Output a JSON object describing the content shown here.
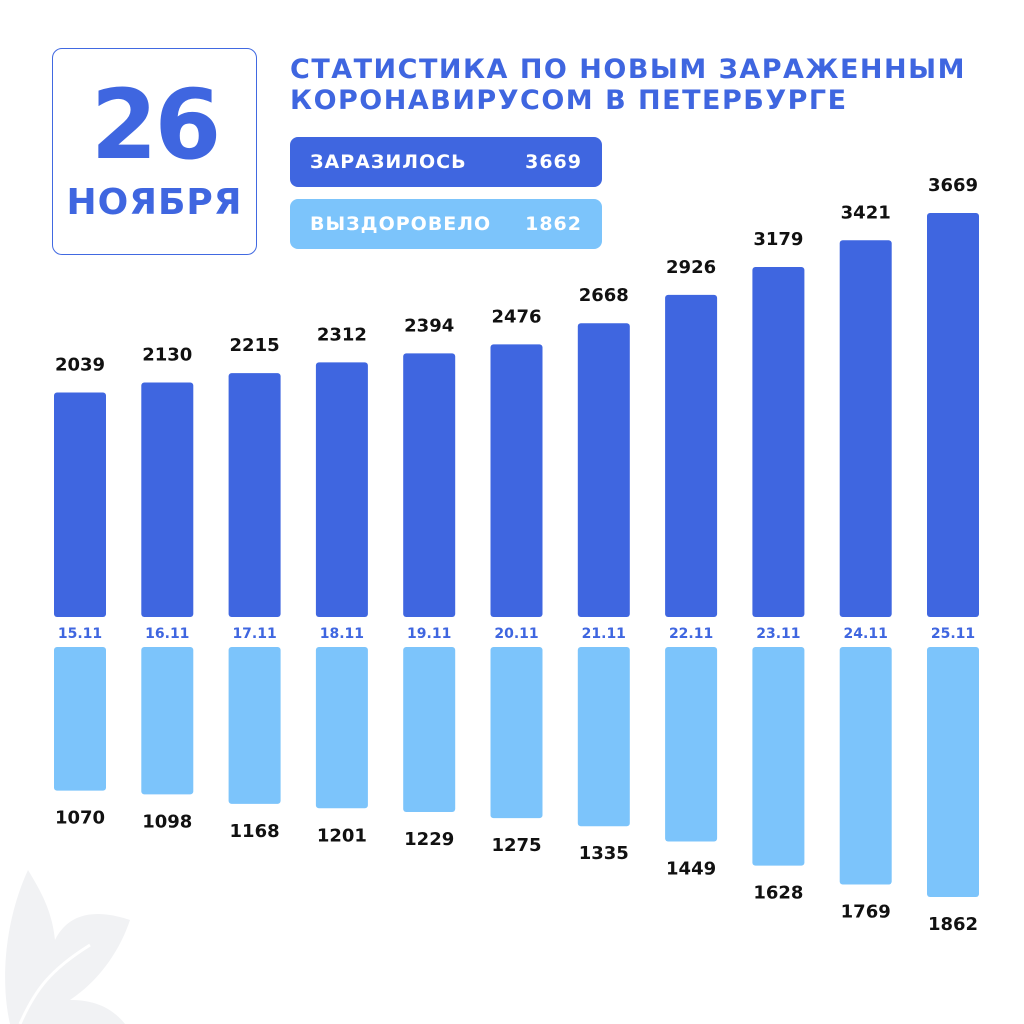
{
  "date": {
    "day": "26",
    "month": "НОЯБРЯ"
  },
  "title": {
    "line1": "СТАТИСТИКА ПО НОВЫМ ЗАРАЖЕННЫМ",
    "line2": "КОРОНАВИРУСОМ В ПЕТЕРБУРГЕ"
  },
  "legend": {
    "infected": {
      "label": "ЗАРАЗИЛОСЬ",
      "value": "3669"
    },
    "recovered": {
      "label": "ВЫЗДОРОВЕЛО",
      "value": "1862"
    }
  },
  "colors": {
    "infected": "#3f66e0",
    "recovered": "#7cc4fb",
    "date_label": "#3f66e0",
    "value_label": "#111111"
  },
  "chart_data": {
    "type": "bar",
    "categories": [
      "15.11",
      "16.11",
      "17.11",
      "18.11",
      "19.11",
      "20.11",
      "21.11",
      "22.11",
      "23.11",
      "24.11",
      "25.11"
    ],
    "series": [
      {
        "name": "ЗАРАЗИЛОСЬ",
        "values": [
          2039,
          2130,
          2215,
          2312,
          2394,
          2476,
          2668,
          2926,
          3179,
          3421,
          3669
        ]
      },
      {
        "name": "ВЫЗДОРОВЕЛО",
        "values": [
          1070,
          1098,
          1168,
          1201,
          1229,
          1275,
          1335,
          1449,
          1628,
          1769,
          1862
        ]
      }
    ],
    "legend": "top-left",
    "grid": false
  }
}
